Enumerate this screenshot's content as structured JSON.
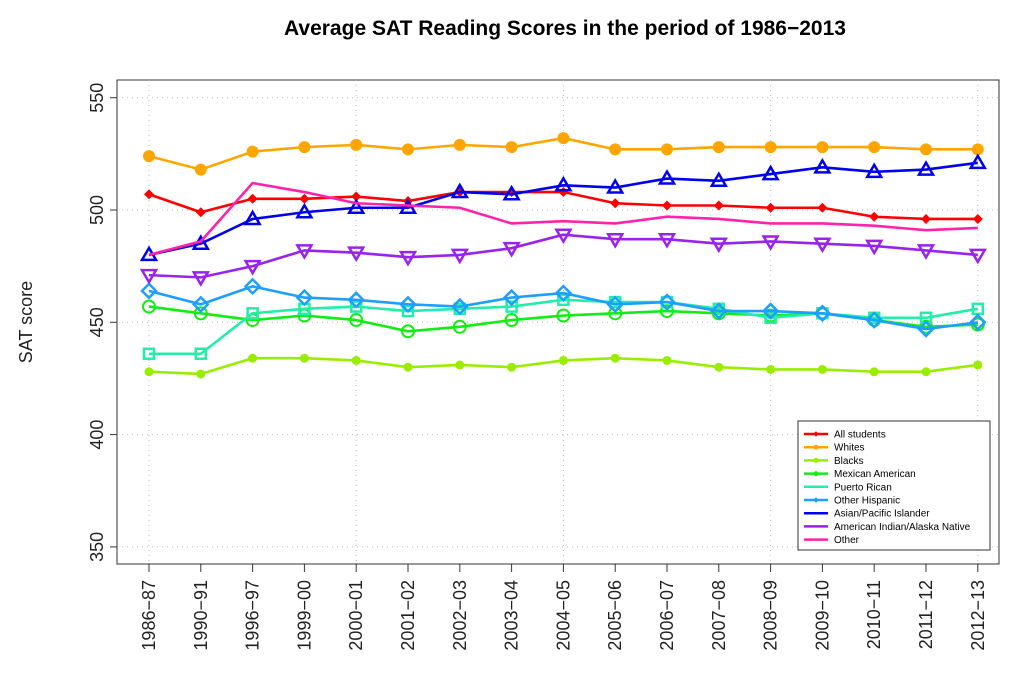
{
  "chart_data": {
    "type": "line",
    "title": "Average SAT Reading Scores in the period of 1986−2013",
    "xlabel": "",
    "ylabel": "SAT score",
    "ylim": [
      345,
      555
    ],
    "yticks": [
      350,
      400,
      450,
      500,
      550
    ],
    "grid": true,
    "legend_position": "bottom-right",
    "categories": [
      "1986−87",
      "1990−91",
      "1996−97",
      "1999−00",
      "2000−01",
      "2001−02",
      "2002−03",
      "2003−04",
      "2004−05",
      "2005−06",
      "2006−07",
      "2007−08",
      "2008−09",
      "2009−10",
      "2010−11",
      "2011−12",
      "2012−13"
    ],
    "series": [
      {
        "name": "All students",
        "color": "#ff0000",
        "marker": "diamond-filled",
        "values": [
          507,
          499,
          505,
          505,
          506,
          504,
          508,
          508,
          508,
          503,
          502,
          502,
          501,
          501,
          497,
          496,
          496
        ]
      },
      {
        "name": "Whites",
        "color": "#ffa500",
        "marker": "circle-filled",
        "values": [
          524,
          518,
          526,
          528,
          529,
          527,
          529,
          528,
          532,
          527,
          527,
          528,
          528,
          528,
          528,
          527,
          527
        ]
      },
      {
        "name": "Blacks",
        "color": "#99ee00",
        "marker": "dot-filled",
        "values": [
          428,
          427,
          434,
          434,
          433,
          430,
          431,
          430,
          433,
          434,
          433,
          430,
          429,
          429,
          428,
          428,
          431
        ]
      },
      {
        "name": "Mexican American",
        "color": "#11ee11",
        "marker": "circle-open",
        "values": [
          457,
          454,
          451,
          453,
          451,
          446,
          448,
          451,
          453,
          454,
          455,
          454,
          453,
          454,
          451,
          448,
          449
        ]
      },
      {
        "name": "Puerto Rican",
        "color": "#22eeaa",
        "marker": "square-open",
        "values": [
          436,
          436,
          454,
          456,
          457,
          455,
          456,
          457,
          460,
          459,
          459,
          456,
          452,
          454,
          452,
          452,
          456
        ]
      },
      {
        "name": "Other Hispanic",
        "color": "#1e9fff",
        "marker": "diamond-open",
        "values": [
          464,
          458,
          466,
          461,
          460,
          458,
          457,
          461,
          463,
          458,
          459,
          455,
          455,
          454,
          451,
          447,
          450
        ]
      },
      {
        "name": "Asian/Pacific Islander",
        "color": "#0000ee",
        "marker": "triangle-up-open",
        "values": [
          480,
          485,
          496,
          499,
          501,
          501,
          508,
          507,
          511,
          510,
          514,
          513,
          516,
          519,
          517,
          518,
          521
        ]
      },
      {
        "name": "American Indian/Alaska Native",
        "color": "#9922ee",
        "marker": "triangle-down-open",
        "values": [
          471,
          470,
          475,
          482,
          481,
          479,
          480,
          483,
          489,
          487,
          487,
          485,
          486,
          485,
          484,
          482,
          480
        ]
      },
      {
        "name": "Other",
        "color": "#ff22aa",
        "marker": "none",
        "values": [
          480,
          486,
          512,
          508,
          503,
          502,
          501,
          494,
          495,
          494,
          497,
          496,
          494,
          494,
          493,
          491,
          492
        ]
      }
    ]
  }
}
